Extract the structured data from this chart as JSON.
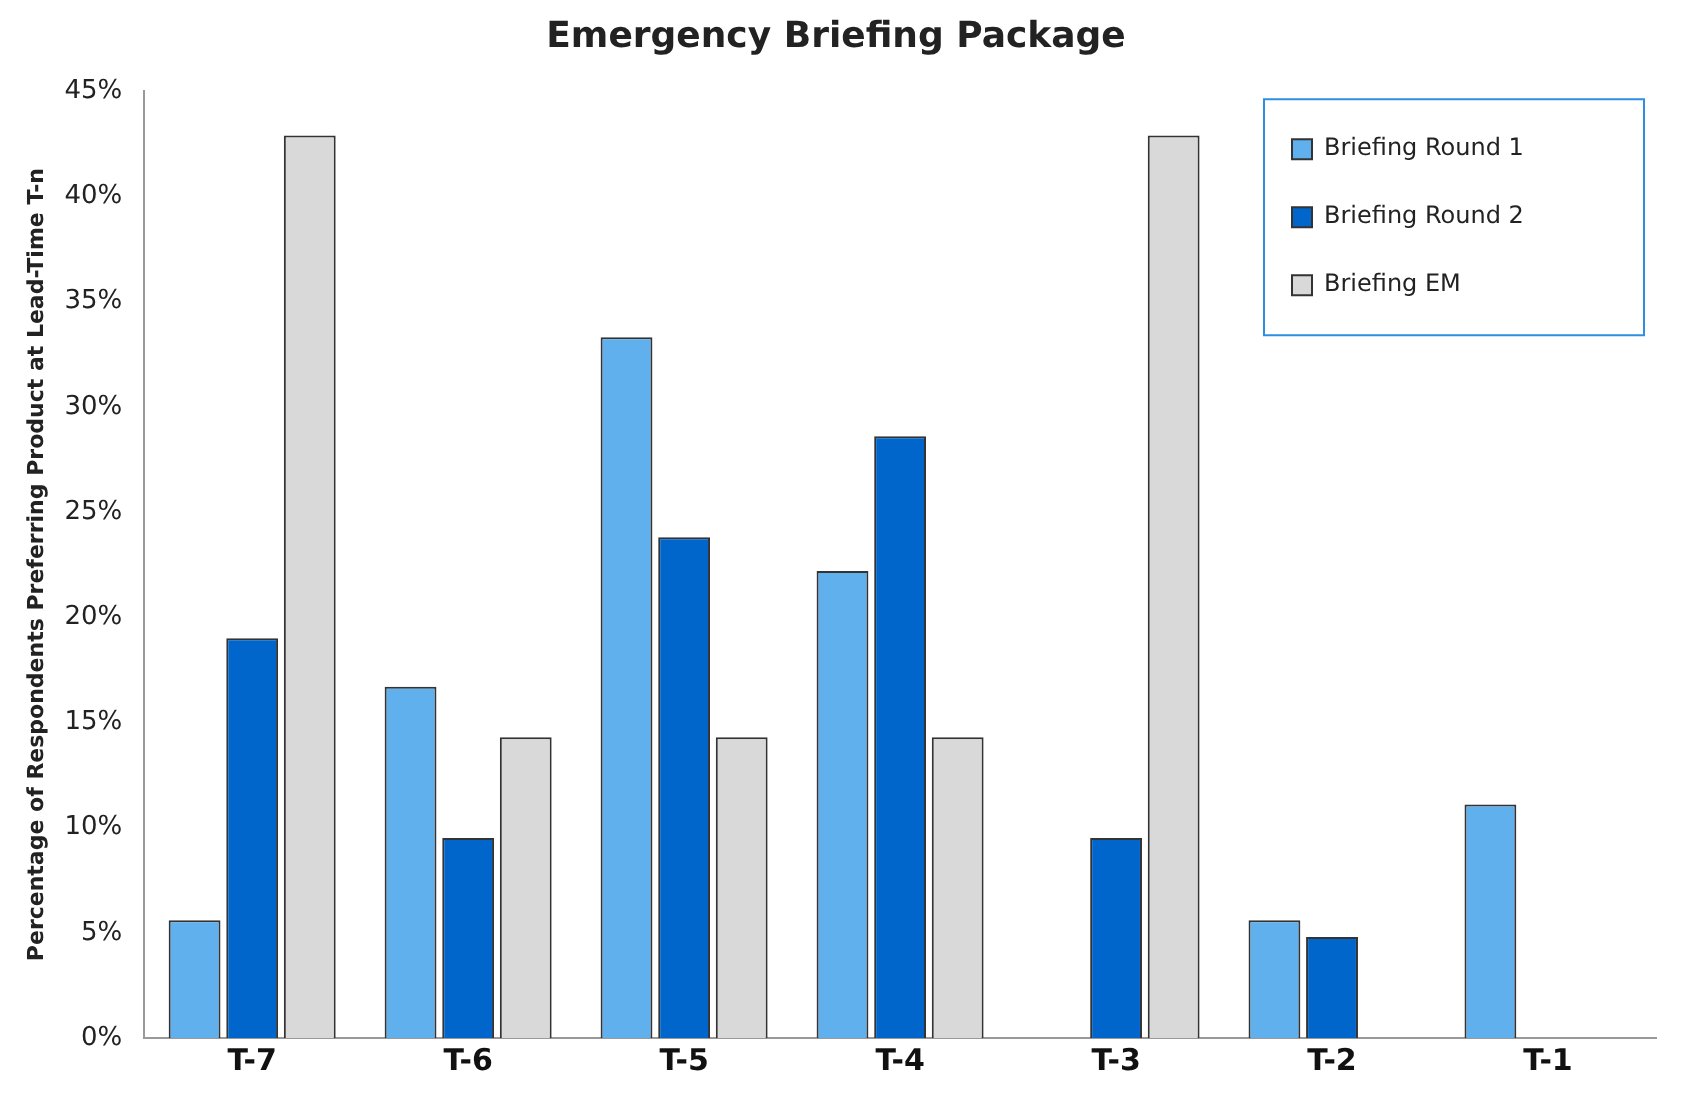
{
  "chart_data": {
    "type": "bar",
    "title": "Emergency Briefing Package",
    "ylabel": "Percentage of Respondents Preferring Product at Lead-Time T-n",
    "categories": [
      "T-7",
      "T-6",
      "T-5",
      "T-4",
      "T-3",
      "T-2",
      "T-1"
    ],
    "series": [
      {
        "name": "Briefing Round 1",
        "color": "#5fb0ec",
        "values": [
          5.6,
          16.7,
          33.3,
          22.2,
          0,
          5.6,
          11.1
        ]
      },
      {
        "name": "Briefing Round 2",
        "color": "#0066cc",
        "values": [
          19.0,
          9.5,
          23.8,
          28.6,
          9.5,
          4.8,
          0
        ]
      },
      {
        "name": "Briefing EM",
        "color": "#d9d9d9",
        "values": [
          42.9,
          14.3,
          14.3,
          14.3,
          42.9,
          0,
          0
        ]
      }
    ],
    "ylim": [
      0,
      45
    ],
    "yticks": [
      {
        "value": 0,
        "label": "0%"
      },
      {
        "value": 5,
        "label": "5%"
      },
      {
        "value": 10,
        "label": "10%"
      },
      {
        "value": 15,
        "label": "15%"
      },
      {
        "value": 20,
        "label": "20%"
      },
      {
        "value": 25,
        "label": "25%"
      },
      {
        "value": 30,
        "label": "30%"
      },
      {
        "value": 35,
        "label": "35%"
      },
      {
        "value": 40,
        "label": "40%"
      },
      {
        "value": 45,
        "label": "45%"
      }
    ],
    "grid": false,
    "legend": "top right"
  }
}
